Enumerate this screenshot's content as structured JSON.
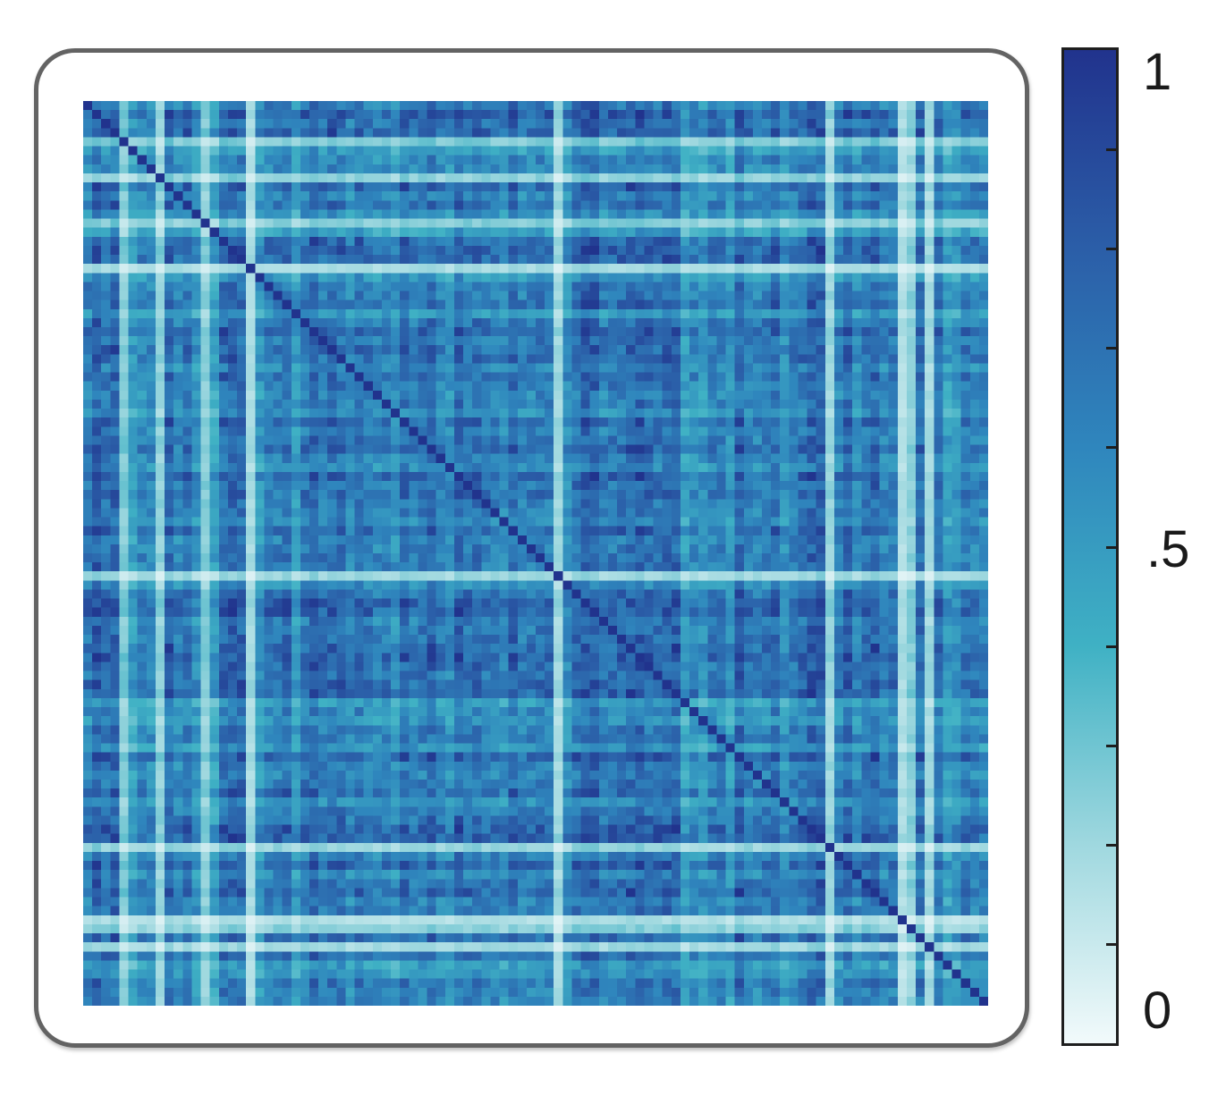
{
  "chart_data": {
    "type": "heatmap",
    "title": "",
    "xlabel": "",
    "ylabel": "",
    "n": 100,
    "description_free_matrix_seed": 7,
    "value_range": [
      0,
      1
    ],
    "colorscale": [
      "#f2fafb",
      "#9fd8df",
      "#3fb1c4",
      "#2f86bd",
      "#2b5ea8",
      "#21338d"
    ],
    "colorbar": {
      "tick_labels": [
        "1",
        ".5",
        "0"
      ],
      "tick_values": [
        1,
        0.5,
        0
      ],
      "minor_ticks": 10
    },
    "grid": false,
    "legend": "colorbar-right"
  }
}
